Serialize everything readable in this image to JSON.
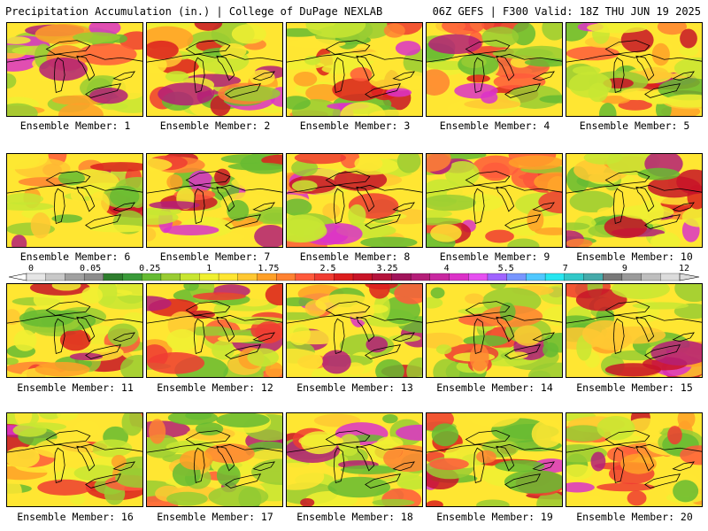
{
  "header": {
    "left_title": "Precipitation Accumulation (in.) | College of DuPage NEXLAB",
    "right_title": "06Z GEFS | F300 Valid: 18Z THU JUN 19 2025"
  },
  "members": [
    {
      "label": "Ensemble Member: 1"
    },
    {
      "label": "Ensemble Member: 2"
    },
    {
      "label": "Ensemble Member: 3"
    },
    {
      "label": "Ensemble Member: 4"
    },
    {
      "label": "Ensemble Member: 5"
    },
    {
      "label": "Ensemble Member: 6"
    },
    {
      "label": "Ensemble Member: 7"
    },
    {
      "label": "Ensemble Member: 8"
    },
    {
      "label": "Ensemble Member: 9"
    },
    {
      "label": "Ensemble Member: 10"
    },
    {
      "label": "Ensemble Member: 11"
    },
    {
      "label": "Ensemble Member: 12"
    },
    {
      "label": "Ensemble Member: 13"
    },
    {
      "label": "Ensemble Member: 14"
    },
    {
      "label": "Ensemble Member: 15"
    },
    {
      "label": "Ensemble Member: 16"
    },
    {
      "label": "Ensemble Member: 17"
    },
    {
      "label": "Ensemble Member: 18"
    },
    {
      "label": "Ensemble Member: 19"
    },
    {
      "label": "Ensemble Member: 20"
    }
  ],
  "colorbar": {
    "tick_labels": [
      "0",
      "0.05",
      "0.25",
      "1",
      "1.75",
      "2.5",
      "3.25",
      "4",
      "5.5",
      "7",
      "9",
      "12"
    ],
    "colors": [
      "#e6e6e6",
      "#c8c8c8",
      "#a0a0a0",
      "#8c8c8c",
      "#2e7d2e",
      "#3a9a3a",
      "#66bb33",
      "#99cc33",
      "#c8e632",
      "#f0f032",
      "#ffe632",
      "#ffc832",
      "#ffa028",
      "#ff8232",
      "#ff5a3c",
      "#f03c32",
      "#dc1e1e",
      "#c81428",
      "#b4143c",
      "#a0145a",
      "#b41e78",
      "#c828a0",
      "#dc32c8",
      "#e650f0",
      "#a064ff",
      "#7896ff",
      "#50c8ff",
      "#28e6f0",
      "#32c8c8",
      "#46aaaa",
      "#787878",
      "#9a9a9a",
      "#bebebe",
      "#dcdcdc"
    ]
  }
}
